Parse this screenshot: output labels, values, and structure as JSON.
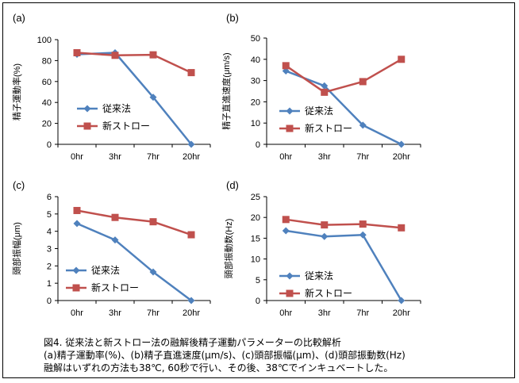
{
  "colors": {
    "series1": "#4F81BD",
    "series2": "#C0504D",
    "axis": "#000000"
  },
  "chart_data": [
    {
      "type": "line",
      "panel_label": "(a)",
      "ylabel": "精子運動率(%)",
      "categories": [
        "0hr",
        "3hr",
        "7hr",
        "20hr"
      ],
      "ylim": [
        0,
        100
      ],
      "yticks": [
        0,
        20,
        40,
        60,
        80,
        100
      ],
      "legend_position": "left-middle",
      "series": [
        {
          "name": "従来法",
          "marker": "diamond",
          "values": [
            86,
            87.5,
            45,
            0
          ]
        },
        {
          "name": "新ストロー",
          "marker": "square",
          "values": [
            87.5,
            85,
            85.5,
            68.5
          ]
        }
      ]
    },
    {
      "type": "line",
      "panel_label": "(b)",
      "ylabel": "精子直進速度(μm/s)",
      "categories": [
        "0hr",
        "3hr",
        "7hr",
        "20hr"
      ],
      "ylim": [
        0,
        50
      ],
      "yticks": [
        0,
        10,
        20,
        30,
        40,
        50
      ],
      "legend_position": "left-middle",
      "series": [
        {
          "name": "従来法",
          "marker": "diamond",
          "values": [
            34.5,
            27.5,
            9,
            0
          ]
        },
        {
          "name": "新ストロー",
          "marker": "square",
          "values": [
            37,
            24.5,
            29.5,
            40
          ]
        }
      ]
    },
    {
      "type": "line",
      "panel_label": "(c)",
      "ylabel": "頭部振幅(μm)",
      "categories": [
        "0hr",
        "3hr",
        "7hr",
        "20hr"
      ],
      "ylim": [
        0,
        6
      ],
      "yticks": [
        0,
        1,
        2,
        3,
        4,
        5,
        6
      ],
      "legend_position": "left-middle",
      "series": [
        {
          "name": "従来法",
          "marker": "diamond",
          "values": [
            4.45,
            3.5,
            1.65,
            0
          ]
        },
        {
          "name": "新ストロー",
          "marker": "square",
          "values": [
            5.2,
            4.8,
            4.55,
            3.8
          ]
        }
      ]
    },
    {
      "type": "line",
      "panel_label": "(d)",
      "ylabel": "頭部振動数(Hz)",
      "categories": [
        "0hr",
        "3hr",
        "7hr",
        "20hr"
      ],
      "ylim": [
        0,
        25
      ],
      "yticks": [
        0,
        5,
        10,
        15,
        20,
        25
      ],
      "legend_position": "left-bottom",
      "series": [
        {
          "name": "従来法",
          "marker": "diamond",
          "values": [
            16.8,
            15.4,
            15.8,
            0
          ]
        },
        {
          "name": "新ストロー",
          "marker": "square",
          "values": [
            19.5,
            18.2,
            18.4,
            17.5
          ]
        }
      ]
    }
  ],
  "caption": {
    "line1": "図4. 従来法と新ストロー法の融解後精子運動パラメーターの比較解析",
    "line2": "(a)精子運動率(%)、(b)精子直進速度(μm/s)、(c)頭部振幅(μm)、(d)頭部振動数(Hz)",
    "line3": "融解はいずれの方法も38℃, 60秒で行い、その後、38℃でインキュベートした。"
  }
}
